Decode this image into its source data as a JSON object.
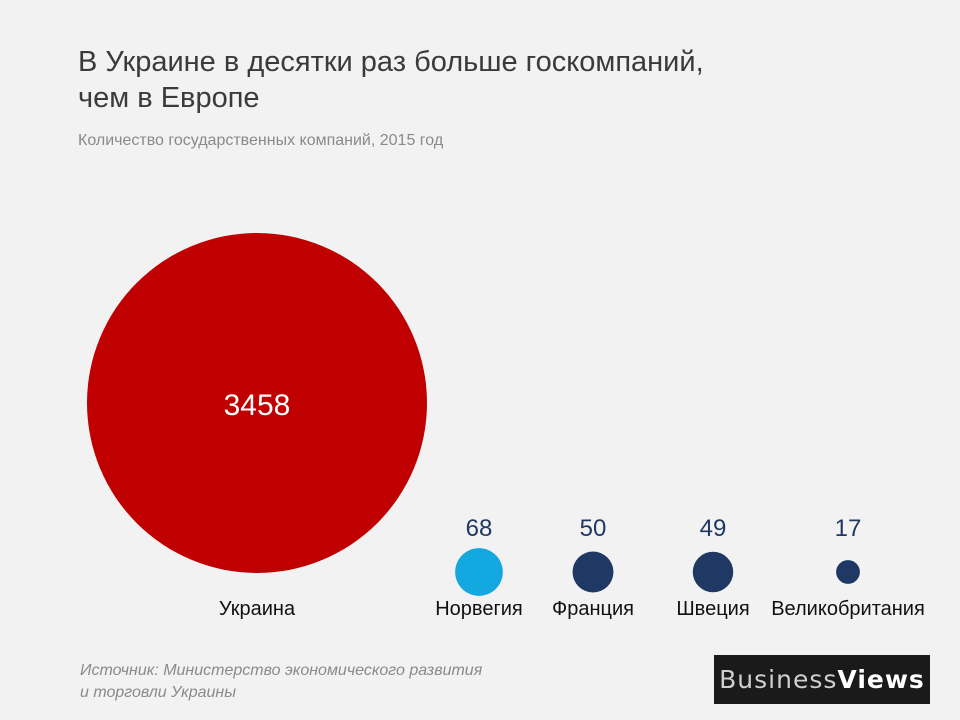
{
  "header": {
    "title_line1": "В Украине в десятки раз больше госкомпаний,",
    "title_line2": "чем в Европе",
    "subtitle": "Количество государственных компаний,  2015 год"
  },
  "chart_data": {
    "type": "bubble",
    "categories": [
      "Украина",
      "Норвегия",
      "Франция",
      "Швеция",
      "Великобритания"
    ],
    "values": [
      3458,
      68,
      50,
      49,
      17
    ],
    "colors": [
      "#c00000",
      "#13a8e0",
      "#1f3864",
      "#1f3864",
      "#1f3864"
    ],
    "value_label_colors": [
      "#ffffff",
      "#1f3864",
      "#1f3864",
      "#1f3864",
      "#1f3864"
    ]
  },
  "footer": {
    "source_line1": "Источник: Министерство экономического развития",
    "source_line2": "и торговли Украины",
    "logo_part1": "Business",
    "logo_part2": "Views"
  }
}
